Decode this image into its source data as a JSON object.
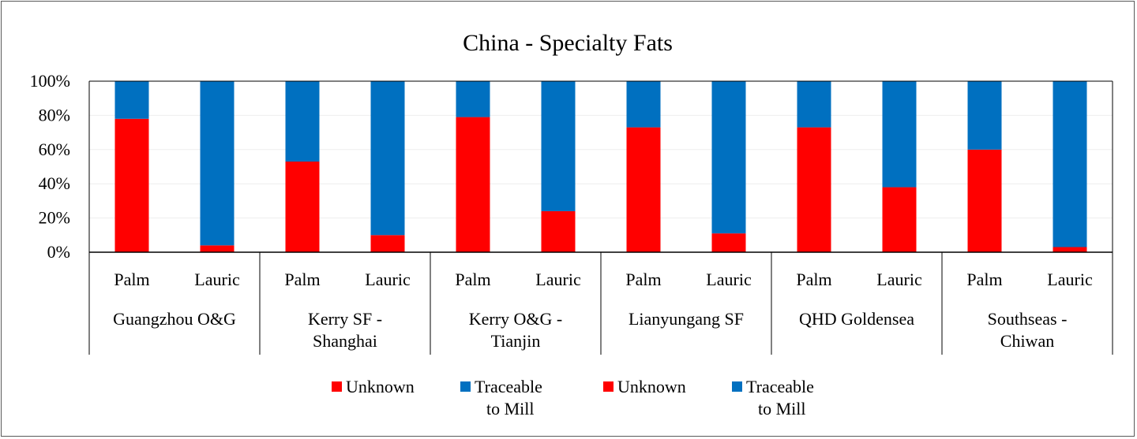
{
  "chart_data": {
    "type": "bar",
    "stacked": "percent",
    "title": "China -  Specialty Fats",
    "ylim": [
      0,
      100
    ],
    "yticks": [
      "0%",
      "20%",
      "40%",
      "60%",
      "80%",
      "100%"
    ],
    "grid": true,
    "legend_position": "bottom",
    "groups": [
      {
        "name": "Guangzhou O&G",
        "label_lines": [
          "Guangzhou O&G"
        ]
      },
      {
        "name": "Kerry SF - Shanghai",
        "label_lines": [
          "Kerry SF -",
          "Shanghai"
        ]
      },
      {
        "name": "Kerry O&G - Tianjin",
        "label_lines": [
          "Kerry O&G -",
          "Tianjin"
        ]
      },
      {
        "name": "Lianyungang SF",
        "label_lines": [
          "Lianyungang SF"
        ]
      },
      {
        "name": "QHD Goldensea",
        "label_lines": [
          "QHD Goldensea"
        ]
      },
      {
        "name": "Southseas - Chiwan",
        "label_lines": [
          "Southseas -",
          "Chiwan"
        ]
      }
    ],
    "subcategories": [
      "Palm",
      "Lauric"
    ],
    "series": [
      {
        "name": "Unknown",
        "subcategory": "Palm",
        "color": "#ff0000",
        "values": [
          78,
          53,
          79,
          73,
          73,
          60
        ]
      },
      {
        "name": "Traceable to Mill",
        "subcategory": "Palm",
        "color": "#0070c0",
        "values": [
          22,
          47,
          21,
          27,
          27,
          40
        ]
      },
      {
        "name": "Unknown",
        "subcategory": "Lauric",
        "color": "#ff0000",
        "values": [
          4,
          10,
          24,
          11,
          38,
          3
        ]
      },
      {
        "name": "Traceable to Mill",
        "subcategory": "Lauric",
        "color": "#0070c0",
        "values": [
          96,
          90,
          76,
          89,
          62,
          97
        ]
      }
    ],
    "legend": [
      {
        "label_lines": [
          "Unknown"
        ],
        "color": "#ff0000"
      },
      {
        "label_lines": [
          "Traceable",
          "to Mill"
        ],
        "color": "#0070c0"
      },
      {
        "label_lines": [
          "Unknown"
        ],
        "color": "#ff0000"
      },
      {
        "label_lines": [
          "Traceable",
          "to Mill"
        ],
        "color": "#0070c0"
      }
    ]
  }
}
